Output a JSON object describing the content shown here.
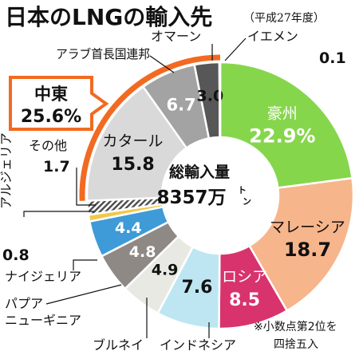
{
  "colors": {
    "accent": "#f26a21",
    "australia": "#86d64c",
    "malaysia": "#f7b58b",
    "russia": "#d8336d",
    "indonesia": "#bde6f2",
    "brunei": "#e9e9e4",
    "papua": "#8f8986",
    "nigeria": "#3e9bd8",
    "algeria": "#f0c94c",
    "others": "#4a4a4a",
    "qatar": "#d9d9d9",
    "uae": "#a3a3a3",
    "oman": "#575757",
    "yemen": "#a3a3a3"
  },
  "chart_data": {
    "type": "pie",
    "donut": true,
    "title": "日本のLNGの輸入先",
    "subtitle": "（平成27年度）",
    "center_label": [
      "総輸入量",
      "8357万",
      "ト",
      "ン"
    ],
    "note": [
      "※小数点第2位を",
      "四捨五入"
    ],
    "group": {
      "label": "中東",
      "value": "25.6%"
    },
    "slices": [
      {
        "name": "豪州",
        "value": 22.9,
        "label": "22.9%"
      },
      {
        "name": "マレーシア",
        "value": 18.7,
        "label": "18.7"
      },
      {
        "name": "ロシア",
        "value": 8.5,
        "label": "8.5"
      },
      {
        "name": "インドネシア",
        "value": 7.6,
        "label": "7.6"
      },
      {
        "name": "ブルネイ",
        "value": 4.9,
        "label": "4.9"
      },
      {
        "name": "パプアニューギニア",
        "value": 4.8,
        "label": "4.8"
      },
      {
        "name": "ナイジェリア",
        "value": 4.4,
        "label": "4.4"
      },
      {
        "name": "アルジェリア",
        "value": 0.8,
        "label": "0.8"
      },
      {
        "name": "その他",
        "value": 1.7,
        "label": "1.7"
      },
      {
        "name": "カタール",
        "value": 15.8,
        "label": "15.8"
      },
      {
        "name": "アラブ首長国連邦",
        "value": 6.7,
        "label": "6.7"
      },
      {
        "name": "オマーン",
        "value": 3.0,
        "label": "3.0"
      },
      {
        "name": "イエメン",
        "value": 0.1,
        "label": "0.1"
      }
    ]
  }
}
